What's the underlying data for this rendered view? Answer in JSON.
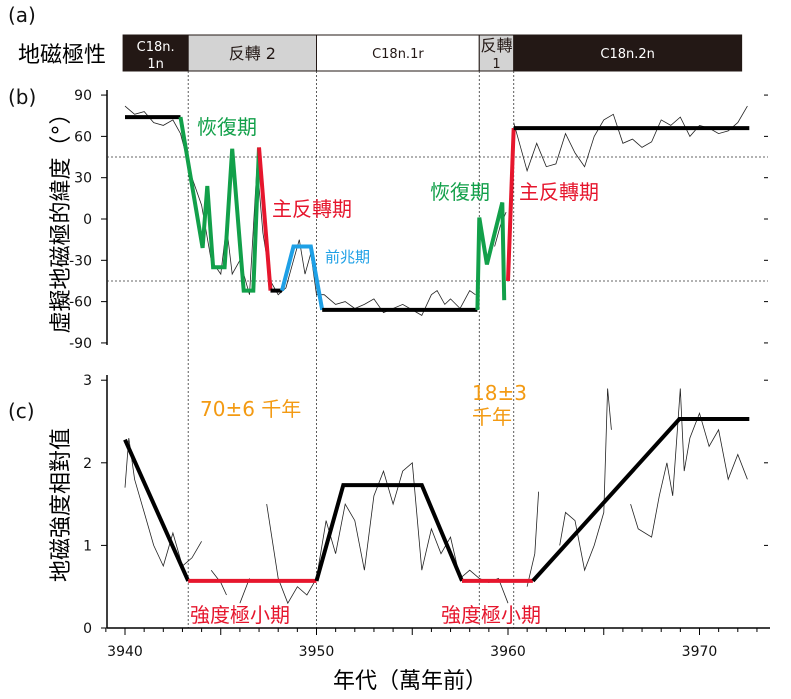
{
  "panel_labels": {
    "a": "(a)",
    "b": "(b)",
    "c": "(c)"
  },
  "polarity": {
    "title": "地磁極性",
    "segments": [
      {
        "label_line1": "C18n.",
        "label_line2": "1n",
        "from": 3939.9,
        "to": 3943.3,
        "color": "#231815",
        "text_color": "#ffffff"
      },
      {
        "label_line1": "反轉",
        "label_line2": "2",
        "from": 3943.3,
        "to": 3950.0,
        "color": "#d3d3d3",
        "text_color": "#231815",
        "inline": true
      },
      {
        "label_line1": "C18n.1r",
        "label_line2": "",
        "from": 3950.0,
        "to": 3958.5,
        "color": "#ffffff",
        "text_color": "#231815"
      },
      {
        "label_line1": "反轉",
        "label_line2": "1",
        "from": 3958.5,
        "to": 3960.3,
        "color": "#d3d3d3",
        "text_color": "#231815"
      },
      {
        "label_line1": "C18n.2n",
        "label_line2": "",
        "from": 3960.3,
        "to": 3972.2,
        "color": "#231815",
        "text_color": "#ffffff"
      }
    ]
  },
  "colors": {
    "recovery": "#12a04a",
    "main_reversal": "#e6162d",
    "precursor": "#1ea0e6",
    "model": "#000000",
    "duration": "#f39a12",
    "minimum": "#e6162d"
  },
  "chart_data": [
    {
      "type": "line",
      "panel": "b",
      "ylabel": "虛擬地磁極的緯度（°）",
      "ylim": [
        -90,
        90
      ],
      "yticks": [
        "90",
        "60",
        "30",
        "0",
        "-30",
        "-60",
        "-90"
      ],
      "xlim": [
        3939,
        3974
      ],
      "reference_lines_y": [
        45,
        -45
      ],
      "annotations": [
        {
          "text": "恢復期",
          "phase": "recovery"
        },
        {
          "text": "主反轉期",
          "phase": "main_reversal"
        },
        {
          "text": "前兆期",
          "phase": "precursor"
        },
        {
          "text": "恢復期",
          "phase": "recovery"
        },
        {
          "text": "主反轉期",
          "phase": "main_reversal"
        }
      ],
      "raw": {
        "x": [
          3940,
          3940.5,
          3941,
          3941.5,
          3942,
          3942.5,
          3942.9,
          3943.5,
          3944,
          3944.5,
          3945,
          3945.3,
          3945.6,
          3946,
          3946.5,
          3946.9,
          3947.2,
          3947.6,
          3948,
          3948.4,
          3948.8,
          3949.1,
          3949.4,
          3949.7,
          3950,
          3950.4,
          3951,
          3951.5,
          3952,
          3952.5,
          3953,
          3953.5,
          3954,
          3954.5,
          3955,
          3955.5,
          3956,
          3956.3,
          3956.7,
          3957,
          3957.5,
          3958,
          3958.3,
          null,
          3959.3,
          3959.6,
          3959.9,
          null,
          3960.3,
          3960.7,
          3961,
          3961.5,
          3962,
          3962.5,
          3963,
          3963.5,
          3964,
          3964.5,
          3965,
          3965.5,
          3966,
          3966.5,
          3967,
          3967.5,
          3968,
          3968.5,
          3969,
          3969.5,
          3970,
          3970.5,
          3971,
          3971.5,
          3972,
          3972.5
        ],
        "y": [
          82,
          76,
          78,
          70,
          68,
          72,
          62,
          30,
          10,
          -30,
          -40,
          -5,
          -40,
          -30,
          -55,
          40,
          -10,
          -45,
          -55,
          -50,
          -30,
          -15,
          -40,
          -25,
          -55,
          -55,
          -62,
          -60,
          -65,
          -62,
          -58,
          -68,
          -65,
          -62,
          -66,
          -70,
          -55,
          -52,
          -62,
          -58,
          -65,
          -52,
          -55,
          null,
          -20,
          -5,
          5,
          null,
          70,
          50,
          35,
          55,
          38,
          40,
          62,
          48,
          38,
          60,
          72,
          76,
          55,
          58,
          52,
          56,
          72,
          68,
          74,
          60,
          68,
          66,
          62,
          64,
          70,
          82
        ]
      },
      "model": [
        {
          "phase": "model",
          "x": [
            3940,
            3942.9
          ],
          "y": [
            74,
            74
          ]
        },
        {
          "phase": "recovery",
          "x": [
            3942.9,
            3944.05,
            3944.3,
            3944.6,
            3945.2,
            3945.6,
            3946.2,
            3946.7,
            3947.0
          ],
          "y": [
            74,
            -21,
            24,
            -35,
            -35,
            51,
            -52,
            -52,
            52
          ]
        },
        {
          "phase": "main_reversal",
          "x": [
            3947.0,
            3947.6
          ],
          "y": [
            52,
            -52
          ]
        },
        {
          "phase": "model",
          "x": [
            3947.6,
            3948.2
          ],
          "y": [
            -52,
            -52
          ]
        },
        {
          "phase": "precursor",
          "x": [
            3948.2,
            3948.8,
            3949.7,
            3950.3
          ],
          "y": [
            -52,
            -20,
            -20,
            -66
          ]
        },
        {
          "phase": "model",
          "x": [
            3950.3,
            3958.4
          ],
          "y": [
            -66,
            -66
          ]
        },
        {
          "phase": "recovery",
          "x": [
            3958.4,
            3958.5,
            3958.9,
            3959.7,
            3959.8
          ],
          "y": [
            -66,
            1,
            -33,
            12,
            -59
          ]
        },
        {
          "phase": "main_reversal",
          "x": [
            3960.0,
            3960.3
          ],
          "y": [
            -45,
            66
          ]
        },
        {
          "phase": "model",
          "x": [
            3960.3,
            3972.6
          ],
          "y": [
            66,
            66
          ]
        }
      ]
    },
    {
      "type": "line",
      "panel": "c",
      "ylabel": "地磁強度相對值",
      "xlabel": "年代（萬年前）",
      "ylim": [
        0,
        3
      ],
      "yticks": [
        "3",
        "2",
        "1",
        "0"
      ],
      "xlim": [
        3939,
        3974
      ],
      "xticks": [
        "3940",
        "3950",
        "3960",
        "3970"
      ],
      "annotations": [
        {
          "text": "70±6 千年",
          "kind": "duration"
        },
        {
          "text_line1": "18±3",
          "text_line2": "千年",
          "kind": "duration"
        },
        {
          "text": "強度極小期",
          "kind": "minimum"
        },
        {
          "text": "強度極小期",
          "kind": "minimum"
        }
      ],
      "raw": {
        "x": [
          3940,
          3940.2,
          3940.5,
          3941,
          3941.5,
          3942,
          3942.5,
          3943,
          3943.5,
          3944,
          null,
          3944.5,
          3945,
          3945.3,
          null,
          3946,
          3946.5,
          null,
          3947.4,
          3948,
          3948.5,
          3949,
          3949.5,
          3950,
          3950.5,
          3951,
          3951.5,
          3952,
          3952.5,
          3953,
          3953.5,
          3954,
          3954.5,
          3955,
          3955.5,
          3956,
          3956.5,
          3957,
          3957.5,
          3958,
          3958.5,
          3959,
          3959.5,
          3960,
          null,
          3961,
          3961.4,
          3961.6,
          null,
          3962.7,
          3963,
          3963.5,
          3964,
          3964.5,
          3965,
          3965.2,
          3965.4,
          null,
          3966.4,
          3966.8,
          3967.5,
          3967.9,
          3968.3,
          3968.6,
          3969,
          3969.2,
          3969.5,
          3970,
          3970.5,
          3971,
          3971.5,
          3972,
          3972.5
        ],
        "y": [
          1.7,
          2.3,
          1.8,
          1.4,
          1.0,
          0.75,
          1.15,
          0.75,
          0.85,
          1.05,
          null,
          0.7,
          0.55,
          0.4,
          null,
          0.3,
          0.6,
          null,
          1.5,
          0.6,
          0.3,
          0.5,
          0.4,
          0.6,
          1.3,
          0.9,
          1.5,
          1.3,
          0.7,
          1.6,
          1.9,
          1.5,
          1.9,
          2.0,
          0.7,
          1.2,
          0.9,
          1.1,
          0.6,
          0.7,
          0.6,
          0.55,
          0.6,
          0.3,
          null,
          0.5,
          0.9,
          1.65,
          null,
          1.0,
          1.4,
          1.3,
          0.7,
          1.0,
          1.4,
          2.9,
          2.4,
          null,
          1.5,
          1.2,
          1.1,
          1.6,
          2.0,
          1.6,
          2.9,
          1.9,
          2.3,
          2.6,
          2.2,
          2.4,
          1.8,
          2.1,
          1.8
        ]
      },
      "model": [
        {
          "phase": "model",
          "x": [
            3940,
            3943.3
          ],
          "y": [
            2.28,
            0.57
          ]
        },
        {
          "phase": "minimum",
          "x": [
            3943.3,
            3950.0
          ],
          "y": [
            0.57,
            0.57
          ]
        },
        {
          "phase": "model",
          "x": [
            3950.0,
            3951.4,
            3955.5,
            3957.6
          ],
          "y": [
            0.57,
            1.73,
            1.73,
            0.57
          ]
        },
        {
          "phase": "minimum",
          "x": [
            3957.6,
            3961.3
          ],
          "y": [
            0.57,
            0.57
          ]
        },
        {
          "phase": "model",
          "x": [
            3961.3,
            3968.95,
            3972.6
          ],
          "y": [
            0.57,
            2.53,
            2.53
          ]
        }
      ]
    }
  ]
}
